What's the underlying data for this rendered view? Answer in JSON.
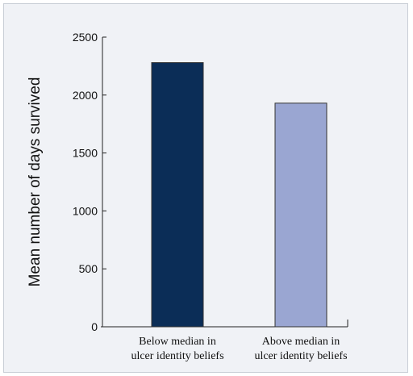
{
  "chart_data": {
    "type": "bar",
    "title": "",
    "xlabel": "",
    "ylabel": "Mean number of days survived",
    "ylim": [
      0,
      2500
    ],
    "yticks": [
      0,
      500,
      1000,
      1500,
      2000,
      2500
    ],
    "grid": false,
    "categories": [
      [
        "Below median in",
        "ulcer identity beliefs"
      ],
      [
        "Above median in",
        "ulcer identity beliefs"
      ]
    ],
    "values": [
      2280,
      1930
    ],
    "colors": [
      "#0b2d57",
      "#9aa6d2"
    ],
    "edge_color": "#333333",
    "background": "#f0f2f6"
  }
}
